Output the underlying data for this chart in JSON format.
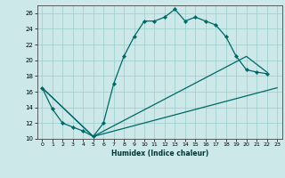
{
  "xlabel": "Humidex (Indice chaleur)",
  "bg_color": "#cce8e8",
  "grid_color": "#99cccc",
  "line_color": "#006666",
  "xlim": [
    -0.5,
    23.5
  ],
  "ylim": [
    10,
    27
  ],
  "xticks": [
    0,
    1,
    2,
    3,
    4,
    5,
    6,
    7,
    8,
    9,
    10,
    11,
    12,
    13,
    14,
    15,
    16,
    17,
    18,
    19,
    20,
    21,
    22,
    23
  ],
  "yticks": [
    10,
    12,
    14,
    16,
    18,
    20,
    22,
    24,
    26
  ],
  "curve1_x": [
    0,
    1,
    2,
    3,
    4,
    5,
    6,
    7,
    8,
    9,
    10,
    11,
    12,
    13,
    14,
    15,
    16,
    17,
    18,
    19,
    20,
    21,
    22
  ],
  "curve1_y": [
    16.5,
    13.8,
    12.0,
    11.5,
    11.0,
    10.3,
    12.0,
    17.0,
    20.5,
    23.0,
    25.0,
    25.0,
    25.5,
    26.5,
    25.0,
    25.5,
    25.0,
    24.5,
    23.0,
    20.5,
    18.8,
    18.5,
    18.3
  ],
  "line2_x": [
    0,
    5,
    23
  ],
  "line2_y": [
    16.5,
    10.3,
    16.5
  ],
  "line3_x": [
    0,
    5,
    20,
    22
  ],
  "line3_y": [
    16.5,
    10.3,
    20.5,
    18.5
  ]
}
